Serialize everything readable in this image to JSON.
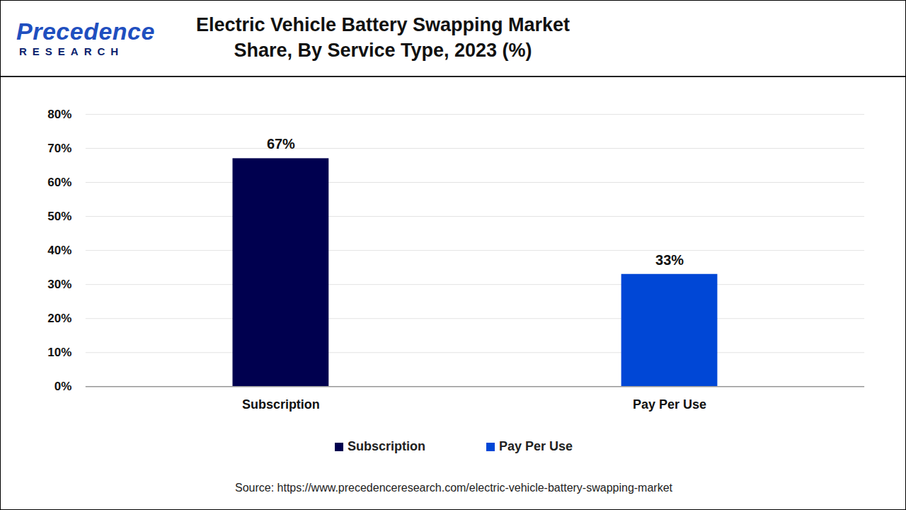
{
  "chart_data": {
    "type": "bar",
    "title": "Electric Vehicle Battery Swapping Market Share, By Service Type, 2023 (%)",
    "brand": [
      "Precedence",
      "RESEARCH"
    ],
    "source": "Source: https://www.precedenceresearch.com/electric-vehicle-battery-swapping-market",
    "categories": [
      "Subscription",
      "Pay Per Use"
    ],
    "values": [
      67,
      33
    ],
    "value_labels": [
      "67%",
      "33%"
    ],
    "colors": [
      "#00004f",
      "#0047d6"
    ],
    "ylim": [
      0,
      80
    ],
    "yticks": [
      {
        "value": 0,
        "label": "0%"
      },
      {
        "value": 10,
        "label": "10%"
      },
      {
        "value": 20,
        "label": "20%"
      },
      {
        "value": 30,
        "label": "30%"
      },
      {
        "value": 40,
        "label": "40%"
      },
      {
        "value": 50,
        "label": "50%"
      },
      {
        "value": 60,
        "label": "60%"
      },
      {
        "value": 70,
        "label": "70%"
      },
      {
        "value": 80,
        "label": "80%"
      }
    ],
    "grid": true,
    "data_labels": true,
    "legend": "bottom"
  }
}
